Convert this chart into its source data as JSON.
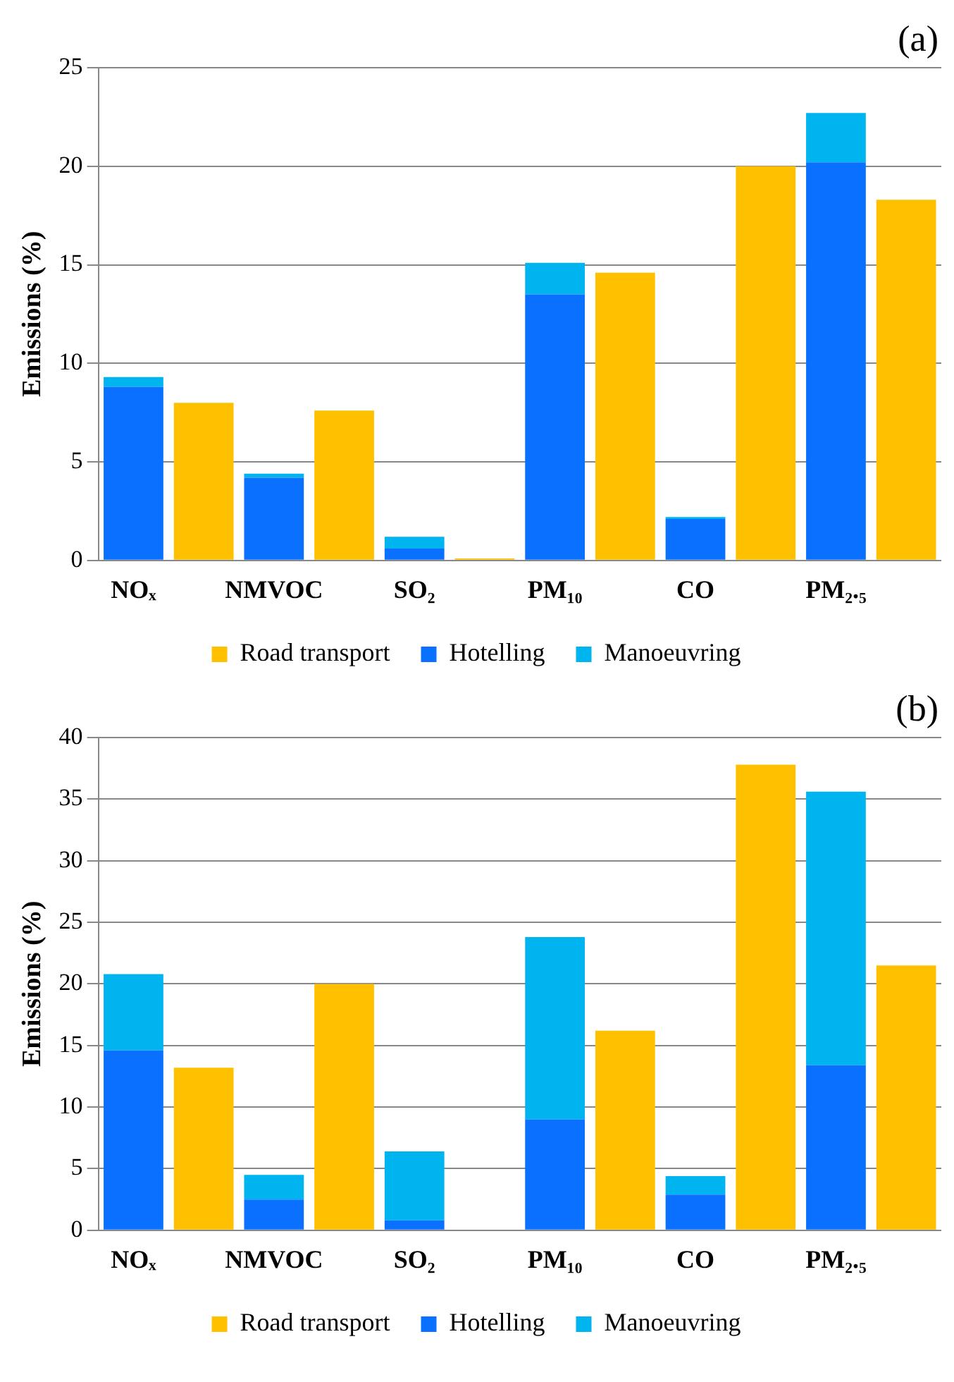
{
  "chart_data": [
    {
      "type": "bar",
      "annotations": [
        "(a)"
      ],
      "ylabel": "Emissions (%)",
      "categories": [
        "NOₓ",
        null,
        "NMVOC",
        null,
        "SO₂",
        null,
        "PM₁₀",
        null,
        "CO",
        null,
        "PM₂.₅",
        null
      ],
      "stacked": true,
      "ylim": [
        0,
        25
      ],
      "yticks": [
        0,
        5,
        10,
        15,
        20,
        25
      ],
      "grid": "y",
      "legend": "bottom",
      "series": [
        {
          "name": "Road transport",
          "color": "#ffc000",
          "values": [
            null,
            8.0,
            null,
            7.6,
            null,
            0.1,
            null,
            14.6,
            null,
            20.0,
            null,
            18.3
          ]
        },
        {
          "name": "Hotelling",
          "color": "#0a70ff",
          "values": [
            8.8,
            null,
            4.2,
            null,
            0.6,
            null,
            13.5,
            null,
            2.1,
            null,
            20.2,
            null
          ]
        },
        {
          "name": "Manoeuvring",
          "color": "#00b4f0",
          "values": [
            0.5,
            null,
            0.2,
            null,
            0.6,
            null,
            1.6,
            null,
            0.1,
            null,
            2.5,
            null
          ]
        }
      ]
    },
    {
      "type": "bar",
      "annotations": [
        "(b)"
      ],
      "ylabel": "Emissions (%)",
      "categories": [
        "NOₓ",
        null,
        "NMVOC",
        null,
        "SO₂",
        null,
        "PM₁₀",
        null,
        "CO",
        null,
        "PM₂.₅",
        null
      ],
      "stacked": true,
      "ylim": [
        0,
        40
      ],
      "yticks": [
        0,
        5,
        10,
        15,
        20,
        25,
        30,
        35,
        40
      ],
      "grid": "y",
      "legend": "bottom",
      "series": [
        {
          "name": "Road transport",
          "color": "#ffc000",
          "values": [
            null,
            13.2,
            null,
            20.0,
            null,
            0,
            null,
            16.2,
            null,
            37.8,
            null,
            21.5
          ]
        },
        {
          "name": "Hotelling",
          "color": "#0a70ff",
          "values": [
            14.6,
            null,
            2.5,
            null,
            0.8,
            null,
            9.0,
            null,
            2.9,
            null,
            13.4,
            null
          ]
        },
        {
          "name": "Manoeuvring",
          "color": "#00b4f0",
          "values": [
            6.2,
            null,
            2.0,
            null,
            5.6,
            null,
            14.8,
            null,
            1.5,
            null,
            22.2,
            null
          ]
        }
      ]
    }
  ]
}
